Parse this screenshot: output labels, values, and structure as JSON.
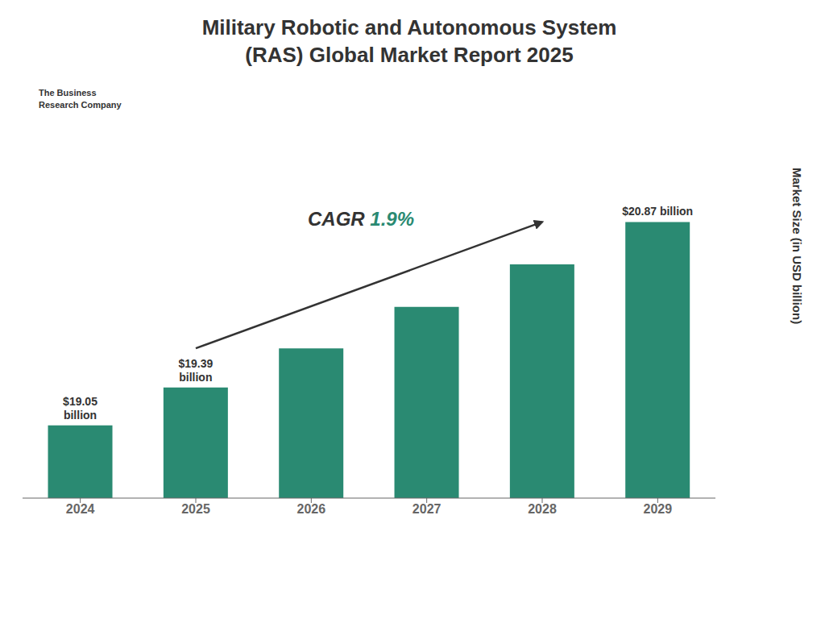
{
  "chart_data": {
    "type": "bar",
    "title": "Military Robotic and Autonomous System\n(RAS) Global Market Report 2025",
    "ylabel": "Market Size (in USD billion)",
    "categories": [
      "2024",
      "2025",
      "2026",
      "2027",
      "2028",
      "2029"
    ],
    "values": [
      19.05,
      19.39,
      19.74,
      20.11,
      20.49,
      20.87
    ],
    "value_labels": [
      "$19.05\nbillion",
      "$19.39\nbillion",
      null,
      null,
      null,
      "$20.87 billion"
    ],
    "color": "#2a8a72",
    "ylim": [
      18.4,
      21.5
    ],
    "tick_labels": "x",
    "grid": false,
    "annotations": [
      "CAGR",
      "1.9%",
      "The Business\nResearch Company"
    ]
  }
}
